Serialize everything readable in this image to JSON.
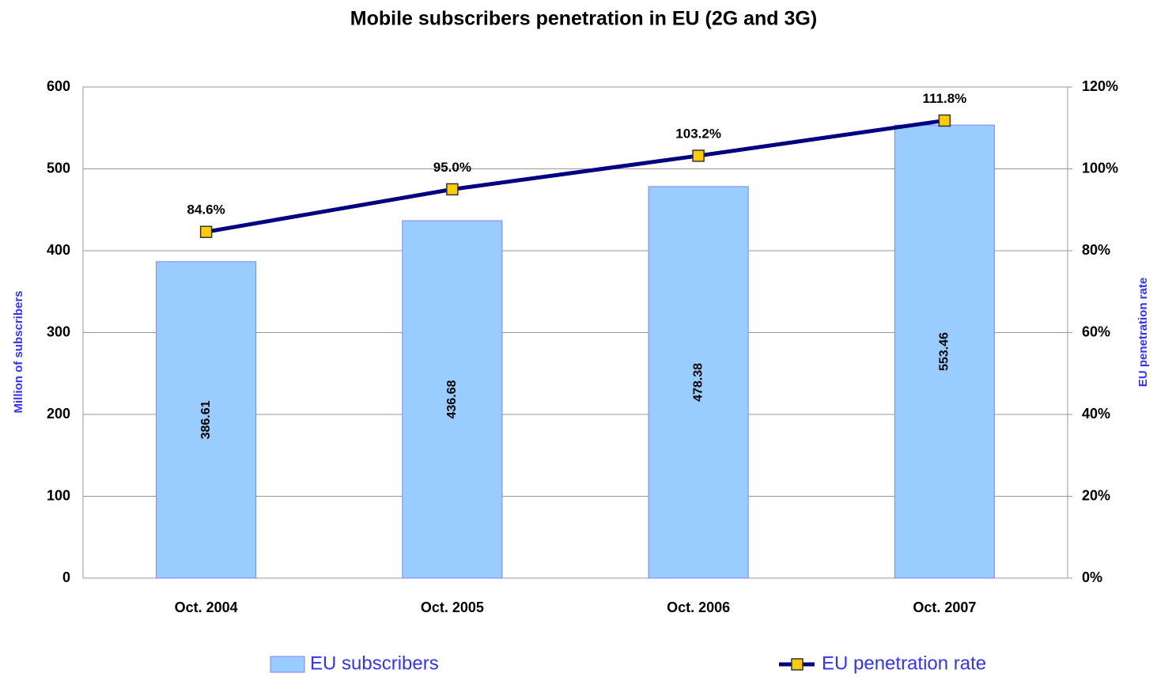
{
  "chart_data": {
    "type": "bar",
    "title": "Mobile subscribers  penetration in EU (2G and 3G)",
    "y_label": "Million of subscribers",
    "y2_label": "EU penetration rate",
    "categories": [
      "Oct. 2004",
      "Oct. 2005",
      "Oct. 2006",
      "Oct. 2007"
    ],
    "series": [
      {
        "name": "EU subscribers",
        "type": "bar",
        "color": "#99ccff",
        "values": [
          386.61,
          436.68,
          478.38,
          553.46
        ]
      },
      {
        "name": "EU penetration rate",
        "type": "line",
        "axis": "y2",
        "color": "#000080",
        "marker_color": "#ffcc00",
        "values": [
          84.6,
          95.0,
          103.2,
          111.8
        ],
        "value_labels": [
          "84.6%",
          "95.0%",
          "103.2%",
          "111.8%"
        ]
      }
    ],
    "ylim": [
      0,
      600
    ],
    "yticks": [
      0,
      100,
      200,
      300,
      400,
      500,
      600
    ],
    "y2lim": [
      0,
      120
    ],
    "y2ticks": [
      {
        "value": 0,
        "label": "0%"
      },
      {
        "value": 20,
        "label": "20%"
      },
      {
        "value": 40,
        "label": "40%"
      },
      {
        "value": 60,
        "label": "60%"
      },
      {
        "value": 80,
        "label": "80%"
      },
      {
        "value": 100,
        "label": "100%"
      },
      {
        "value": 120,
        "label": "120%"
      }
    ],
    "grid": true,
    "legend": "bottom"
  }
}
